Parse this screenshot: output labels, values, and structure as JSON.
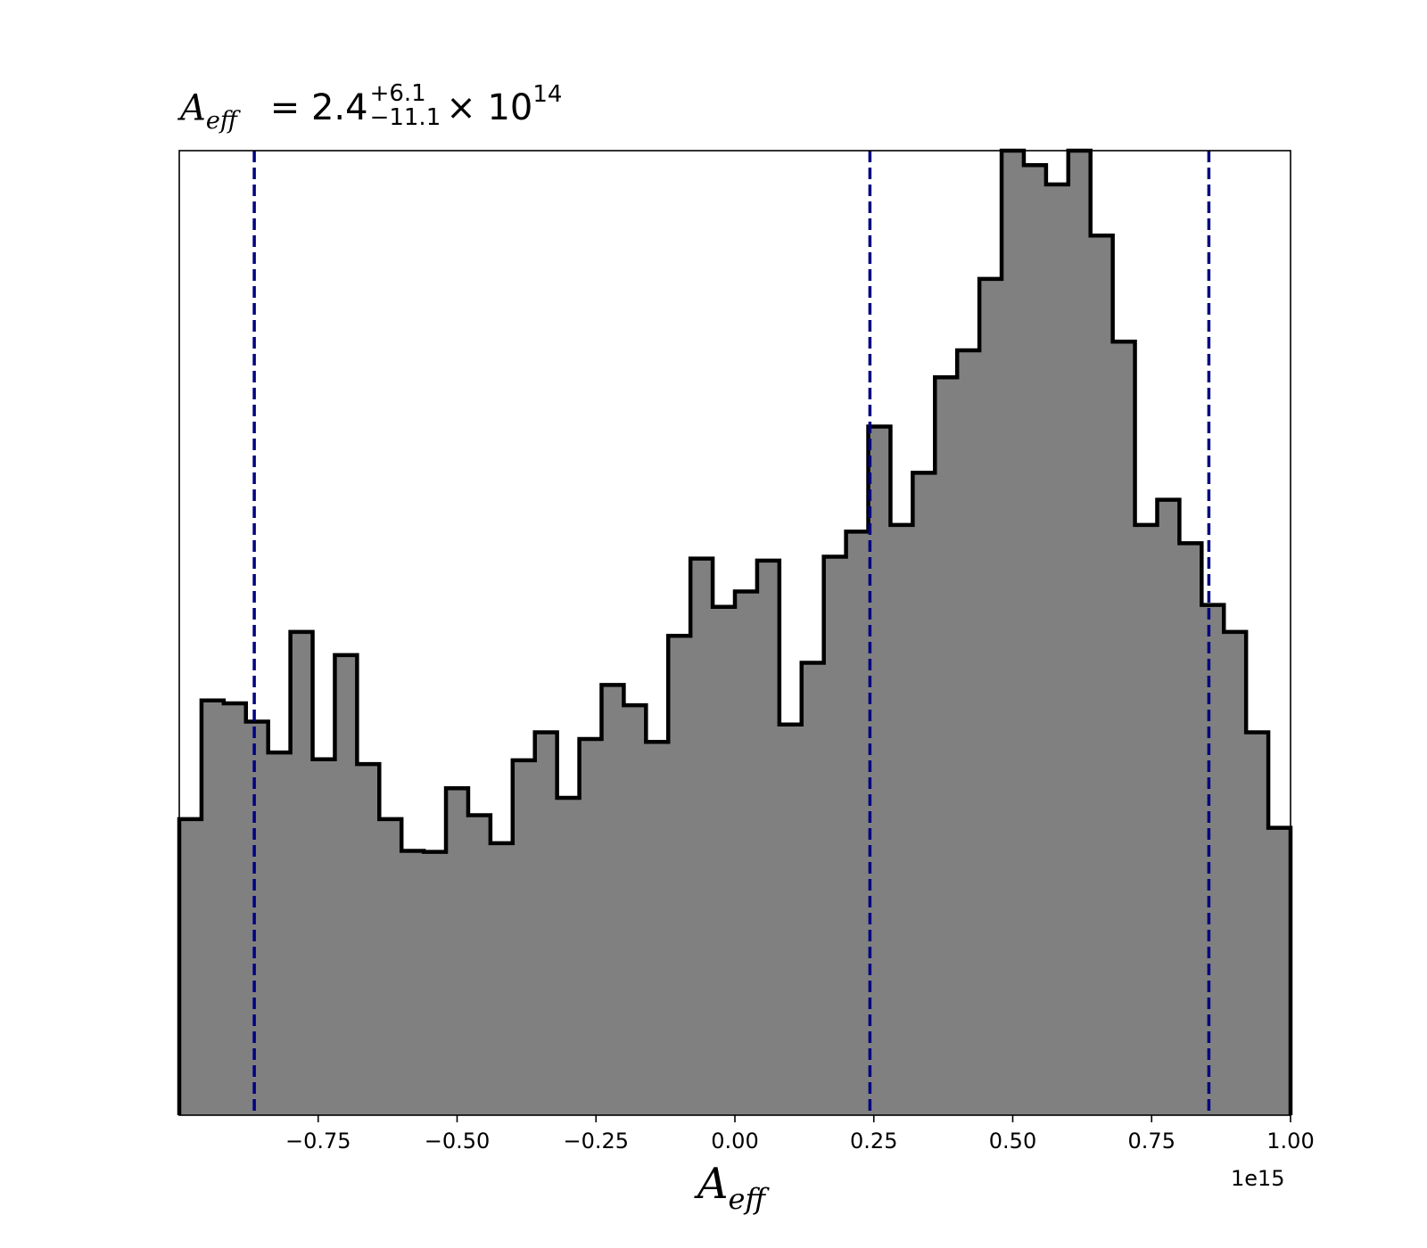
{
  "chart_data": {
    "type": "histogram",
    "title": {
      "var": "A",
      "sub": "eff",
      "equals": "= 2.4",
      "upper": "+6.1",
      "lower": "−11.1",
      "times": "× 10",
      "exponent": "14"
    },
    "xlabel": {
      "var": "A",
      "sub": "eff"
    },
    "x_offset_label": "1e15",
    "xlim": [
      -1.0,
      1.0
    ],
    "ylim": [
      0,
      1.0
    ],
    "x_ticks": [
      -0.75,
      -0.5,
      -0.25,
      0.0,
      0.25,
      0.5,
      0.75,
      1.0
    ],
    "x_tick_labels": [
      "−0.75",
      "−0.50",
      "−0.25",
      "0.00",
      "0.25",
      "0.50",
      "0.75",
      "1.00"
    ],
    "bin_edges_start": -1.0,
    "bin_width": 0.04,
    "values": [
      0.307,
      0.43,
      0.427,
      0.408,
      0.376,
      0.501,
      0.369,
      0.477,
      0.364,
      0.307,
      0.274,
      0.273,
      0.339,
      0.311,
      0.282,
      0.368,
      0.397,
      0.329,
      0.39,
      0.446,
      0.425,
      0.387,
      0.497,
      0.577,
      0.527,
      0.543,
      0.575,
      0.405,
      0.469,
      0.579,
      0.605,
      0.714,
      0.612,
      0.666,
      0.765,
      0.793,
      0.867,
      1.0,
      0.985,
      0.965,
      1.0,
      0.912,
      0.802,
      0.612,
      0.638,
      0.593,
      0.529,
      0.501,
      0.397,
      0.298,
      0.284
    ],
    "vlines": [
      -0.865,
      0.243,
      0.853
    ],
    "colors": {
      "fill": "#808080",
      "edge": "#000000",
      "vline": "#000080"
    },
    "grid": false
  }
}
